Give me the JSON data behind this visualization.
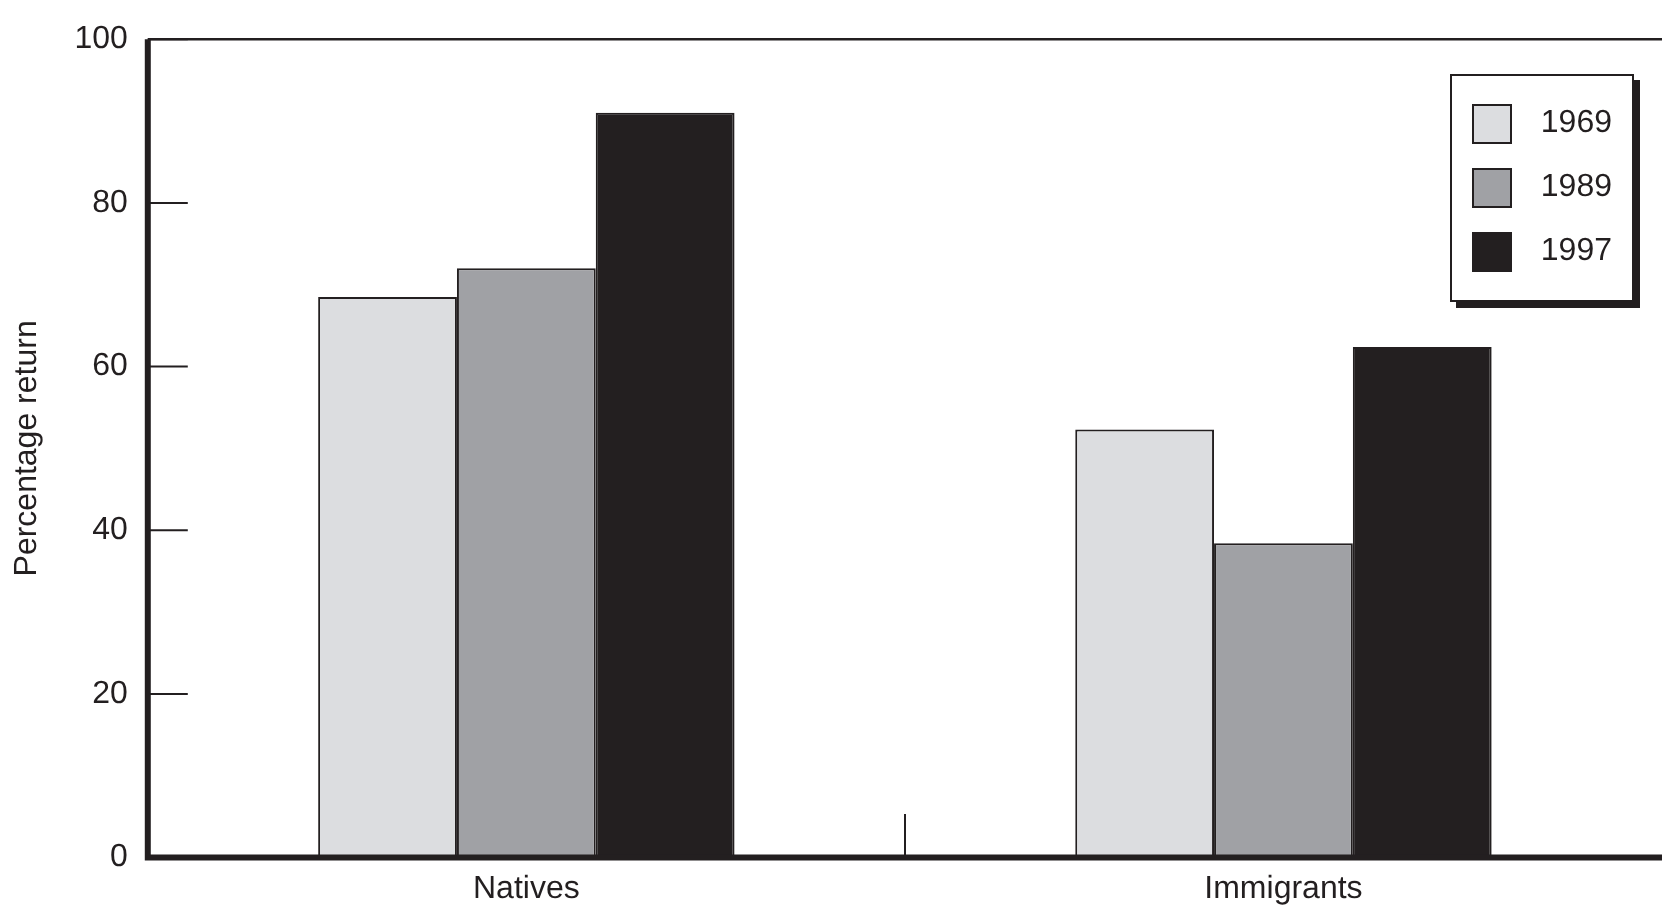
{
  "chart_data": {
    "type": "bar",
    "ylabel": "Percentage return",
    "categories": [
      "Natives",
      "Immigrants"
    ],
    "series": [
      {
        "name": "1969",
        "color": "#dcdde0",
        "values": [
          68.5,
          52.3
        ]
      },
      {
        "name": "1989",
        "color": "#a0a1a5",
        "values": [
          72,
          38.4
        ]
      },
      {
        "name": "1997",
        "color": "#231f20",
        "values": [
          91,
          62.4
        ]
      }
    ],
    "ylim": [
      0,
      100
    ],
    "yticks": [
      0,
      20,
      40,
      60,
      80,
      100
    ],
    "grid": false,
    "legend": "top right"
  }
}
